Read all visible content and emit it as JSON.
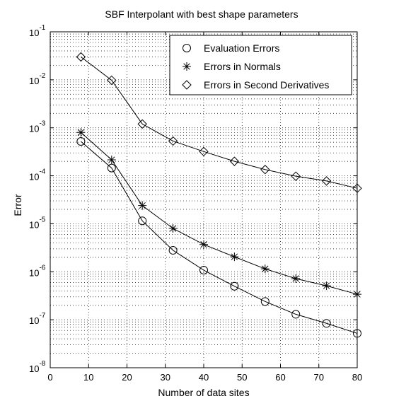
{
  "chart_data": {
    "type": "line",
    "title": "SBF Interpolant with best shape parameters",
    "xlabel": "Number of data sites",
    "ylabel": "Error",
    "xlim": [
      0,
      80
    ],
    "ylim": [
      1e-08,
      0.1
    ],
    "yscale": "log",
    "grid": "minor-dotted",
    "legend_position": "top-right",
    "x_ticks": [
      0,
      10,
      20,
      30,
      40,
      50,
      60,
      70,
      80
    ],
    "y_tick_exponents": [
      -8,
      -7,
      -6,
      -5,
      -4,
      -3,
      -2,
      -1
    ],
    "x": [
      8,
      16,
      24,
      32,
      40,
      48,
      56,
      64,
      72,
      80
    ],
    "series": [
      {
        "name": "Evaluation Errors",
        "marker": "circle",
        "values": [
          0.00052,
          0.000145,
          1.15e-05,
          2.8e-06,
          1.08e-06,
          5e-07,
          2.4e-07,
          1.3e-07,
          8.4e-08,
          5.2e-08
        ]
      },
      {
        "name": "Errors in Normals",
        "marker": "star",
        "values": [
          0.0008,
          0.000215,
          2.4e-05,
          8e-06,
          3.7e-06,
          2.05e-06,
          1.15e-06,
          7.2e-07,
          5.1e-07,
          3.4e-07
        ]
      },
      {
        "name": "Errors in Second Derivatives",
        "marker": "diamond",
        "values": [
          0.03,
          0.0098,
          0.0012,
          0.00053,
          0.00032,
          0.0002,
          0.000135,
          9.8e-05,
          7.8e-05,
          5.5e-05
        ]
      }
    ]
  }
}
